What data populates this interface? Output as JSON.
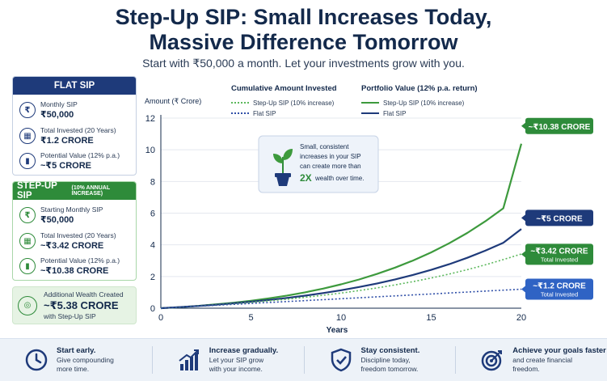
{
  "header": {
    "title_line1": "Step-Up SIP: Small Increases Today,",
    "title_line2": "Massive Difference Tomorrow",
    "subtitle": "Start with ₹50,000 a month. Let your investments grow with you."
  },
  "flat_card": {
    "title": "FLAT SIP",
    "rows": [
      {
        "icon": "rupee-icon",
        "label": "Monthly SIP",
        "value": "₹50,000"
      },
      {
        "icon": "calendar-icon",
        "label": "Total Invested (20 Years)",
        "value": "₹1.2 CRORE"
      },
      {
        "icon": "bar-chart-icon",
        "label": "Potential Value (12% p.a.)",
        "value": "~₹5 CRORE"
      }
    ]
  },
  "step_card": {
    "title": "STEP-UP SIP",
    "title_suffix": "(10% ANNUAL INCREASE)",
    "rows": [
      {
        "icon": "rupee-icon",
        "label": "Starting Monthly SIP",
        "value": "₹50,000"
      },
      {
        "icon": "calendar-icon",
        "label": "Total Invested (20 Years)",
        "value": "~₹3.42 CRORE"
      },
      {
        "icon": "bar-chart-icon",
        "label": "Potential Value (12% p.a.)",
        "value": "~₹10.38 CRORE"
      }
    ]
  },
  "additional": {
    "icon": "target-icon",
    "label": "Additional Wealth Created",
    "value": "~₹5.38 CRORE",
    "note": "with Step-Up SIP"
  },
  "chart_data": {
    "type": "line",
    "ylabel": "Amount (₹ Crore)",
    "xlabel": "Years",
    "xlim": [
      0,
      20
    ],
    "ylim": [
      0,
      12
    ],
    "xticks": [
      0,
      5,
      10,
      15,
      20
    ],
    "yticks": [
      0,
      2,
      4,
      6,
      8,
      10,
      12
    ],
    "legend": {
      "group1_title": "Cumulative Amount Invested",
      "group2_title": "Portfolio Value (12% p.a. return)",
      "step_invested": "Step-Up SIP (10% increase)",
      "flat_invested": "Flat SIP",
      "step_value": "Step-Up SIP (10% increase)",
      "flat_value": "Flat SIP"
    },
    "series": [
      {
        "key": "step_value",
        "color": "#3d9a3d",
        "style": "solid",
        "x": [
          0,
          1,
          2,
          3,
          4,
          5,
          6,
          7,
          8,
          9,
          10,
          11,
          12,
          13,
          14,
          15,
          16,
          17,
          18,
          19,
          20
        ],
        "values": [
          0,
          0.063,
          0.14,
          0.233,
          0.342,
          0.471,
          0.622,
          0.798,
          1.003,
          1.238,
          1.507,
          1.815,
          2.166,
          2.564,
          3.015,
          3.525,
          4.101,
          4.751,
          5.483,
          6.307,
          10.38
        ]
      },
      {
        "key": "flat_value",
        "color": "#1e3a7a",
        "style": "solid",
        "x": [
          0,
          1,
          2,
          3,
          4,
          5,
          6,
          7,
          8,
          9,
          10,
          11,
          12,
          13,
          14,
          15,
          16,
          17,
          18,
          19,
          20
        ],
        "values": [
          0,
          0.064,
          0.136,
          0.216,
          0.307,
          0.408,
          0.522,
          0.65,
          0.793,
          0.954,
          1.135,
          1.337,
          1.564,
          1.818,
          2.103,
          2.422,
          2.779,
          3.18,
          3.629,
          4.132,
          5.0
        ]
      },
      {
        "key": "step_invested",
        "color": "#5cb85c",
        "style": "dotted",
        "x": [
          0,
          1,
          2,
          3,
          4,
          5,
          6,
          7,
          8,
          9,
          10,
          11,
          12,
          13,
          14,
          15,
          16,
          17,
          18,
          19,
          20
        ],
        "values": [
          0,
          0.06,
          0.126,
          0.199,
          0.278,
          0.366,
          0.463,
          0.569,
          0.686,
          0.815,
          0.956,
          1.112,
          1.283,
          1.471,
          1.678,
          1.906,
          2.157,
          2.433,
          2.736,
          3.07,
          3.42
        ]
      },
      {
        "key": "flat_invested",
        "color": "#2f4fa8",
        "style": "dotted",
        "x": [
          0,
          5,
          10,
          15,
          20
        ],
        "values": [
          0,
          0.3,
          0.6,
          0.9,
          1.2
        ]
      }
    ],
    "callouts": [
      {
        "text": "~₹10.38 CRORE",
        "sub": "",
        "y": 11.5,
        "color": "#2e8b3a"
      },
      {
        "text": "~₹5 CRORE",
        "sub": "",
        "y": 5.7,
        "color": "#1e3a7a"
      },
      {
        "text": "~₹3.42 CRORE",
        "sub": "Total Invested",
        "y": 3.4,
        "color": "#2e8b3a"
      },
      {
        "text": "~₹1.2 CRORE",
        "sub": "Total Invested",
        "y": 1.2,
        "color": "#2f63c4"
      }
    ],
    "annotation": {
      "icon": "plant-icon",
      "line1": "Small, consistent",
      "line2": "increases in your SIP",
      "line3": "can create more than",
      "highlight": "2X",
      "line4": "wealth over time."
    }
  },
  "footer": [
    {
      "icon": "clock-icon",
      "head": "Start early.",
      "sub1": "Give compounding",
      "sub2": "more time."
    },
    {
      "icon": "growth-chart-icon",
      "head": "Increase gradually.",
      "sub1": "Let your SIP grow",
      "sub2": "with your income."
    },
    {
      "icon": "shield-check-icon",
      "head": "Stay consistent.",
      "sub1": "Discipline today,",
      "sub2": "freedom tomorrow."
    },
    {
      "icon": "target-icon",
      "head": "Achieve your goals faster",
      "sub1": "and create financial",
      "sub2": "freedom."
    }
  ]
}
